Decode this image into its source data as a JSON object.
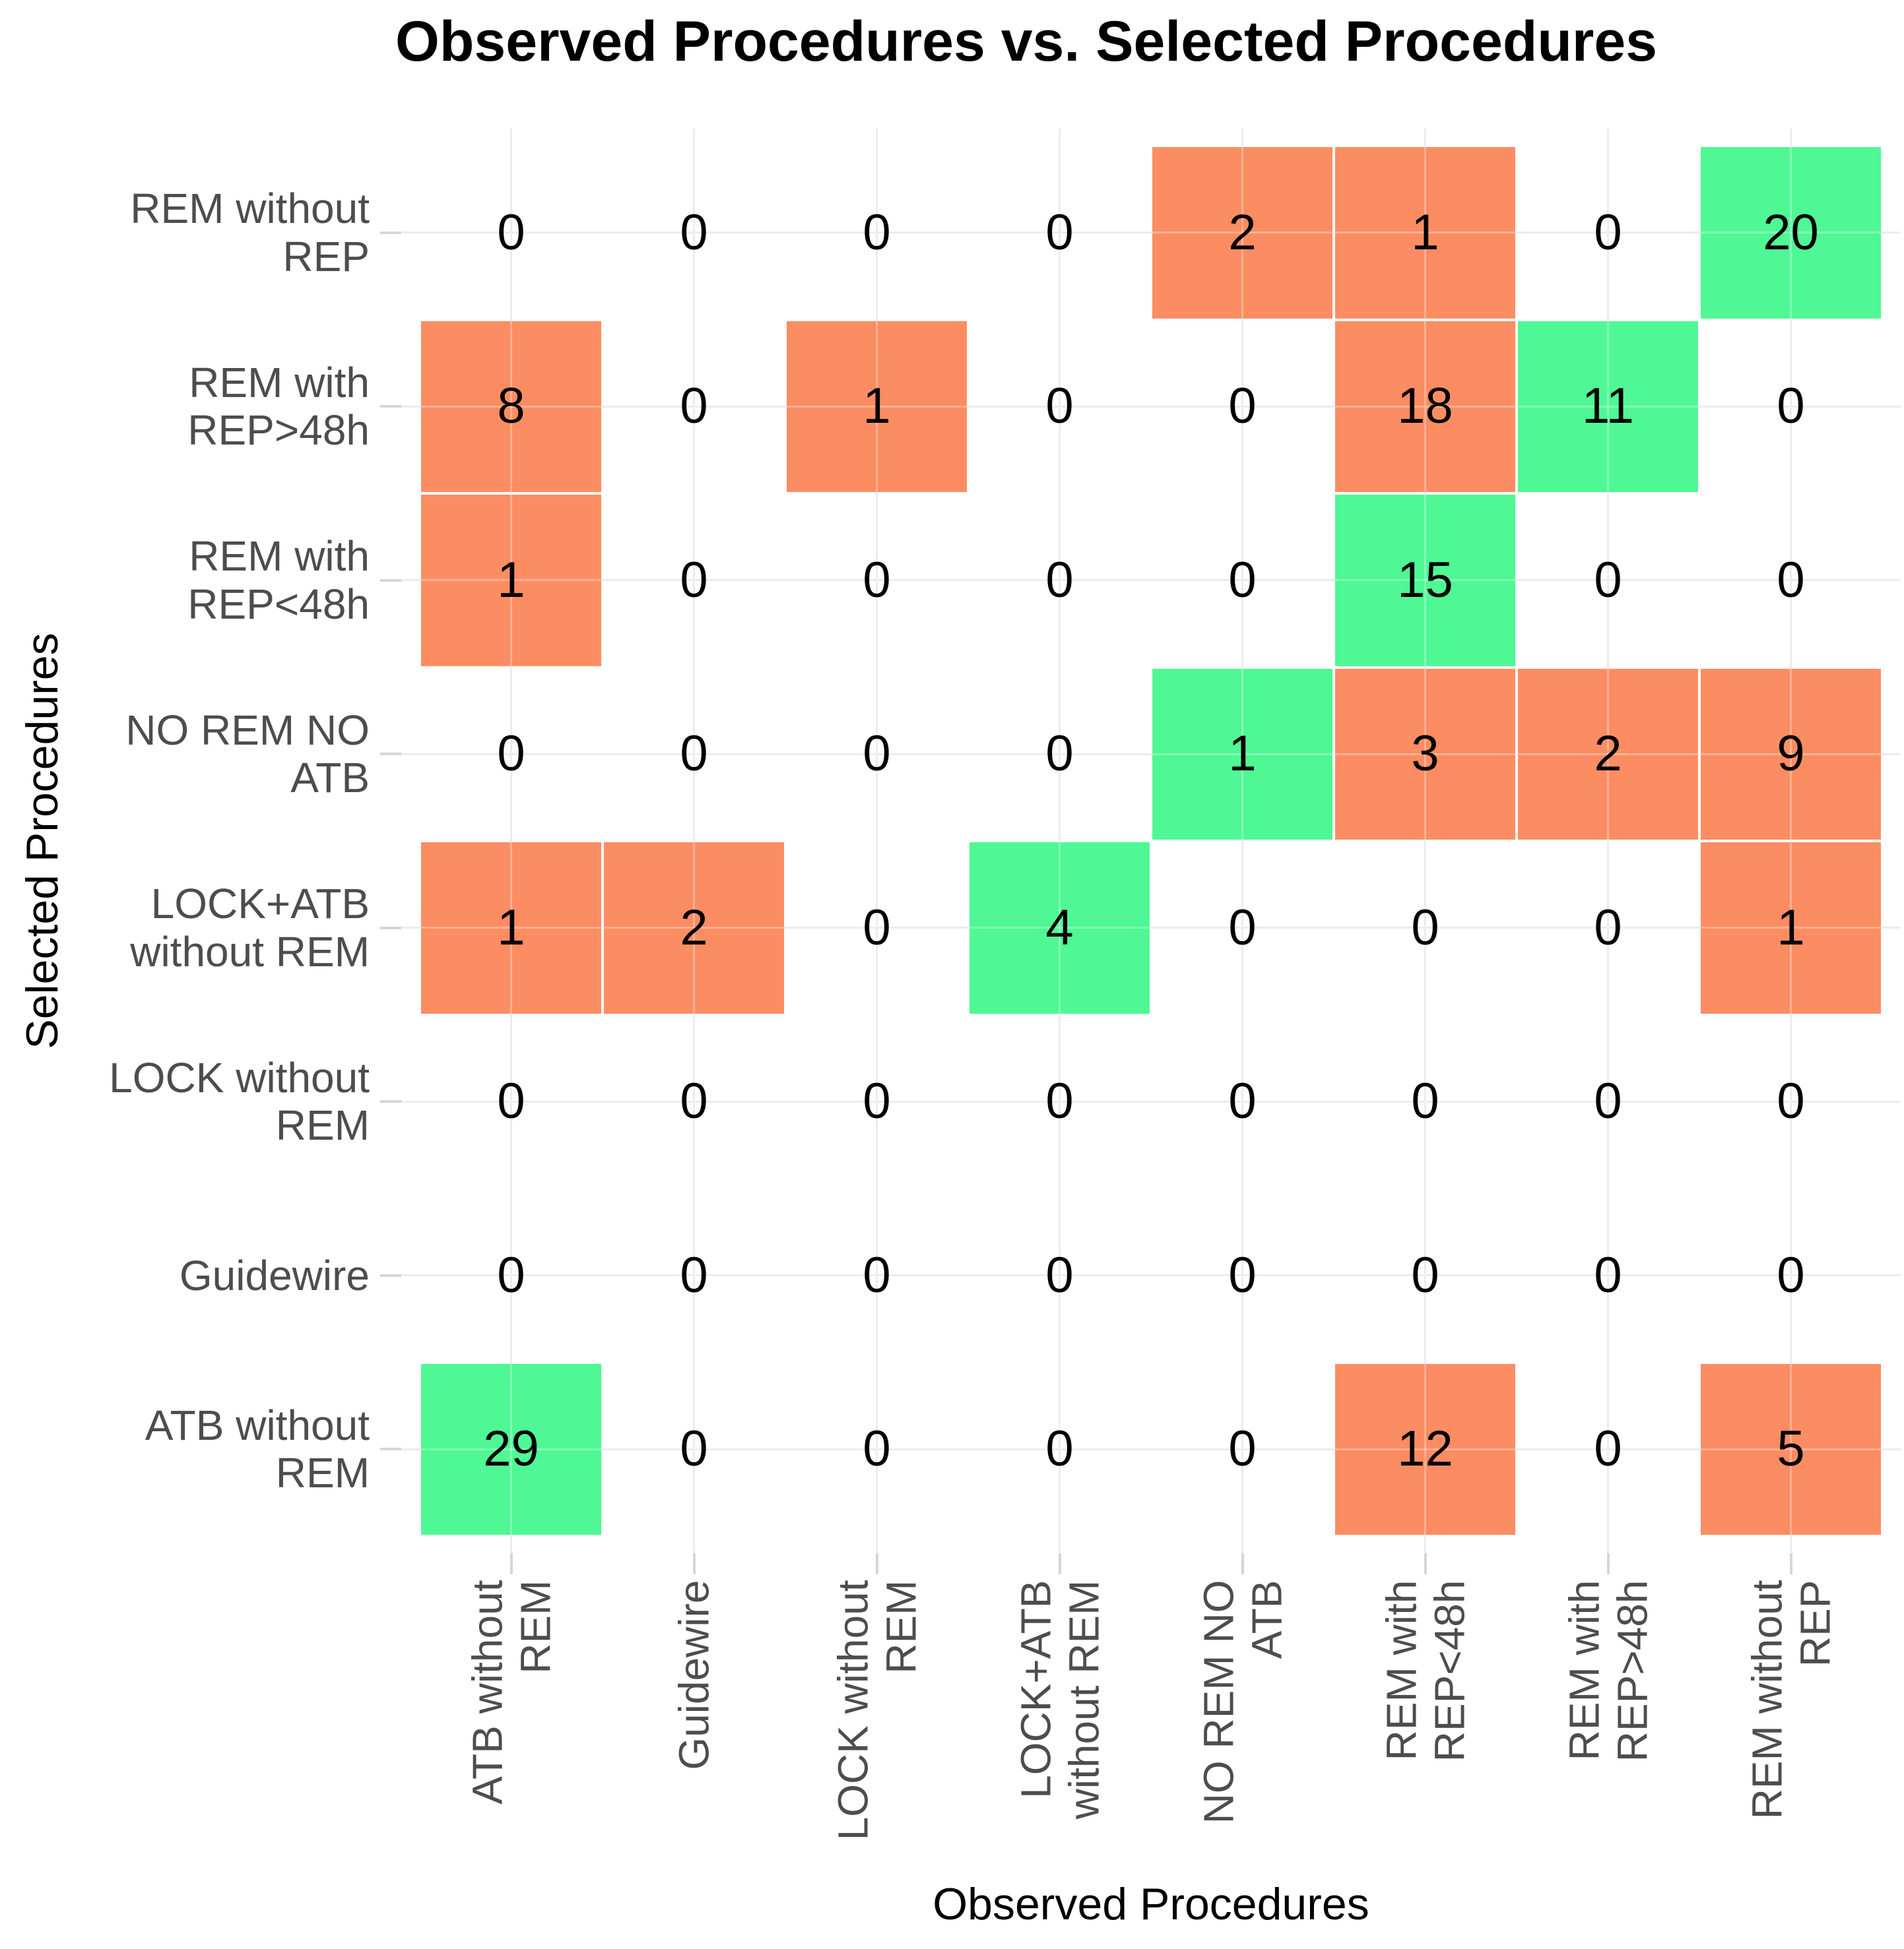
{
  "title": "Observed Procedures vs. Selected Procedures",
  "chart_data": {
    "type": "heatmap",
    "title": "Observed Procedures vs. Selected Procedures",
    "xlabel": "Observed Procedures",
    "ylabel": "Selected Procedures",
    "x_categories": [
      "ATB without REM",
      "Guidewire",
      "LOCK without REM",
      "LOCK+ATB without REM",
      "NO REM NO ATB",
      "REM with REP<48h",
      "REM with REP>48h",
      "REM without REP"
    ],
    "y_categories_top_to_bottom": [
      "REM without REP",
      "REM with REP>48h",
      "REM with REP<48h",
      "NO REM NO ATB",
      "LOCK+ATB without REM",
      "LOCK without REM",
      "Guidewire",
      "ATB without REM"
    ],
    "x_tick_lines": [
      [
        "ATB without",
        "REM"
      ],
      [
        "Guidewire"
      ],
      [
        "LOCK without",
        "REM"
      ],
      [
        "LOCK+ATB",
        "without REM"
      ],
      [
        "NO REM NO",
        "ATB"
      ],
      [
        "REM with",
        "REP<48h"
      ],
      [
        "REM with",
        "REP>48h"
      ],
      [
        "REM without",
        "REP"
      ]
    ],
    "y_tick_lines": [
      [
        "REM without",
        "REP"
      ],
      [
        "REM with",
        "REP>48h"
      ],
      [
        "REM with",
        "REP<48h"
      ],
      [
        "NO REM NO",
        "ATB"
      ],
      [
        "LOCK+ATB",
        "without REM"
      ],
      [
        "LOCK without",
        "REM"
      ],
      [
        "Guidewire"
      ],
      [
        "ATB without",
        "REM"
      ]
    ],
    "matrix_rows_top_to_bottom": [
      [
        0,
        0,
        0,
        0,
        2,
        1,
        0,
        20
      ],
      [
        8,
        0,
        1,
        0,
        0,
        18,
        11,
        0
      ],
      [
        1,
        0,
        0,
        0,
        0,
        15,
        0,
        0
      ],
      [
        0,
        0,
        0,
        0,
        1,
        3,
        2,
        9
      ],
      [
        1,
        2,
        0,
        4,
        0,
        0,
        0,
        1
      ],
      [
        0,
        0,
        0,
        0,
        0,
        0,
        0,
        0
      ],
      [
        0,
        0,
        0,
        0,
        0,
        0,
        0,
        0
      ],
      [
        29,
        0,
        0,
        0,
        0,
        12,
        0,
        5
      ]
    ],
    "cell_fill_rows_top_to_bottom": [
      [
        "none",
        "none",
        "none",
        "none",
        "orange",
        "orange",
        "none",
        "green"
      ],
      [
        "orange",
        "none",
        "orange",
        "none",
        "none",
        "orange",
        "green",
        "none"
      ],
      [
        "orange",
        "none",
        "none",
        "none",
        "none",
        "green",
        "none",
        "none"
      ],
      [
        "none",
        "none",
        "none",
        "none",
        "green",
        "orange",
        "orange",
        "orange"
      ],
      [
        "orange",
        "orange",
        "none",
        "green",
        "none",
        "none",
        "none",
        "orange"
      ],
      [
        "none",
        "none",
        "none",
        "none",
        "none",
        "none",
        "none",
        "none"
      ],
      [
        "none",
        "none",
        "none",
        "none",
        "none",
        "none",
        "none",
        "none"
      ],
      [
        "green",
        "none",
        "none",
        "none",
        "none",
        "orange",
        "none",
        "orange"
      ]
    ],
    "colors": {
      "green": "#4ff894",
      "orange": "#fc8d62",
      "none": "transparent",
      "gridline": "#e3e3e3",
      "tick_mark": "#d6d6d6",
      "axis_text": "#4d4d4d",
      "title_text": "#000000",
      "cell_value_text": "#000000",
      "background": "#ffffff"
    },
    "grid": true,
    "legend_position": "none",
    "axis_ranges": {
      "columns": 8,
      "rows": 8
    }
  }
}
